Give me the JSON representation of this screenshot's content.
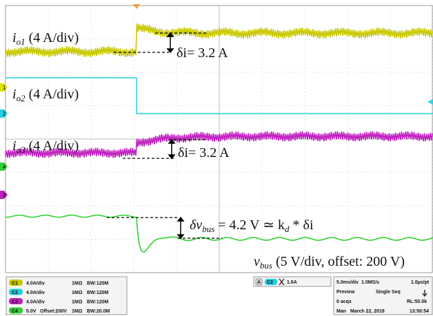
{
  "annotations": {
    "io1": {
      "symbol": "i",
      "sub": "o1",
      "rest": " (4 A/div)"
    },
    "delta1": "δi= 3.2 A",
    "io2": {
      "symbol": "i",
      "sub": "o2",
      "rest": " (4 A/div)"
    },
    "io3": {
      "symbol": "i",
      "sub": "o3",
      "rest": " (4 A/div)"
    },
    "delta3": "δi= 3.2 A",
    "dvbus": {
      "symbol": "δv",
      "sub": "bus",
      "mid": " = 4.2 V ≃ k",
      "sub2": "d",
      "rest": " * δi"
    },
    "vbus": {
      "symbol": "v",
      "sub": "bus",
      "rest": " (5 V/div, offset: 200 V)"
    }
  },
  "markers": [
    "1",
    "2",
    "4",
    "3"
  ],
  "channels": [
    {
      "name": "C1",
      "scale": "4.0A/div",
      "offset": "",
      "impedance": "1MΩ",
      "bandwidth": "BW:120M"
    },
    {
      "name": "C2",
      "scale": "4.0A/div",
      "offset": "",
      "impedance": "1MΩ",
      "bandwidth": "BW:120M"
    },
    {
      "name": "C3",
      "scale": "4.0A/div",
      "offset": "",
      "impedance": "1MΩ",
      "bandwidth": "BW:120M"
    },
    {
      "name": "C4",
      "scale": "5.0V",
      "offset": "Offset:200V",
      "impedance": "1MΩ",
      "bandwidth": "BW:20.0M"
    }
  ],
  "trigger": {
    "mode": "A",
    "source": "C2",
    "level": "1.6A"
  },
  "acquisition": {
    "timebase": "5.0ms/div",
    "rate": "1.0MS/s",
    "resolution": "1.0µs/pt",
    "state": "Preview",
    "run": "Single Seq",
    "count": "0 acqs",
    "length": "RL:50.0k",
    "trigger_type": "Man",
    "date": "March 22, 2018",
    "time": "13:50:54"
  }
}
